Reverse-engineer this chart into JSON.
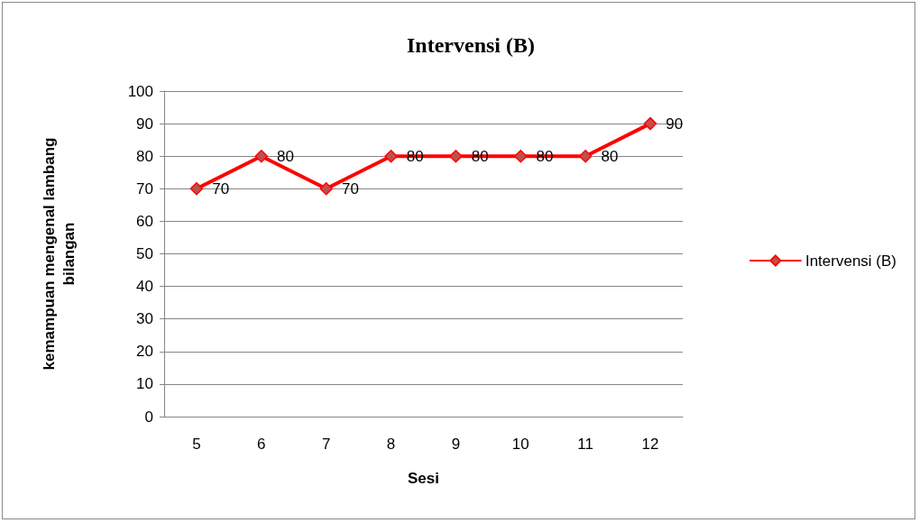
{
  "chart_data": {
    "type": "line",
    "title": "Intervensi (B)",
    "xlabel": "Sesi",
    "ylabel": "kemampuan mengenal lambang\nbilangan",
    "categories": [
      "5",
      "6",
      "7",
      "8",
      "9",
      "10",
      "11",
      "12"
    ],
    "series": [
      {
        "name": "Intervensi (B)",
        "color": "#ff0000",
        "values": [
          70,
          80,
          70,
          80,
          80,
          80,
          80,
          90
        ]
      }
    ],
    "ylim": [
      0,
      100
    ],
    "yticks": [
      0,
      10,
      20,
      30,
      40,
      50,
      60,
      70,
      80,
      90,
      100
    ],
    "grid": "y",
    "legend": "right",
    "marker": "diamond",
    "line_style": "solid",
    "data_labels": true
  }
}
